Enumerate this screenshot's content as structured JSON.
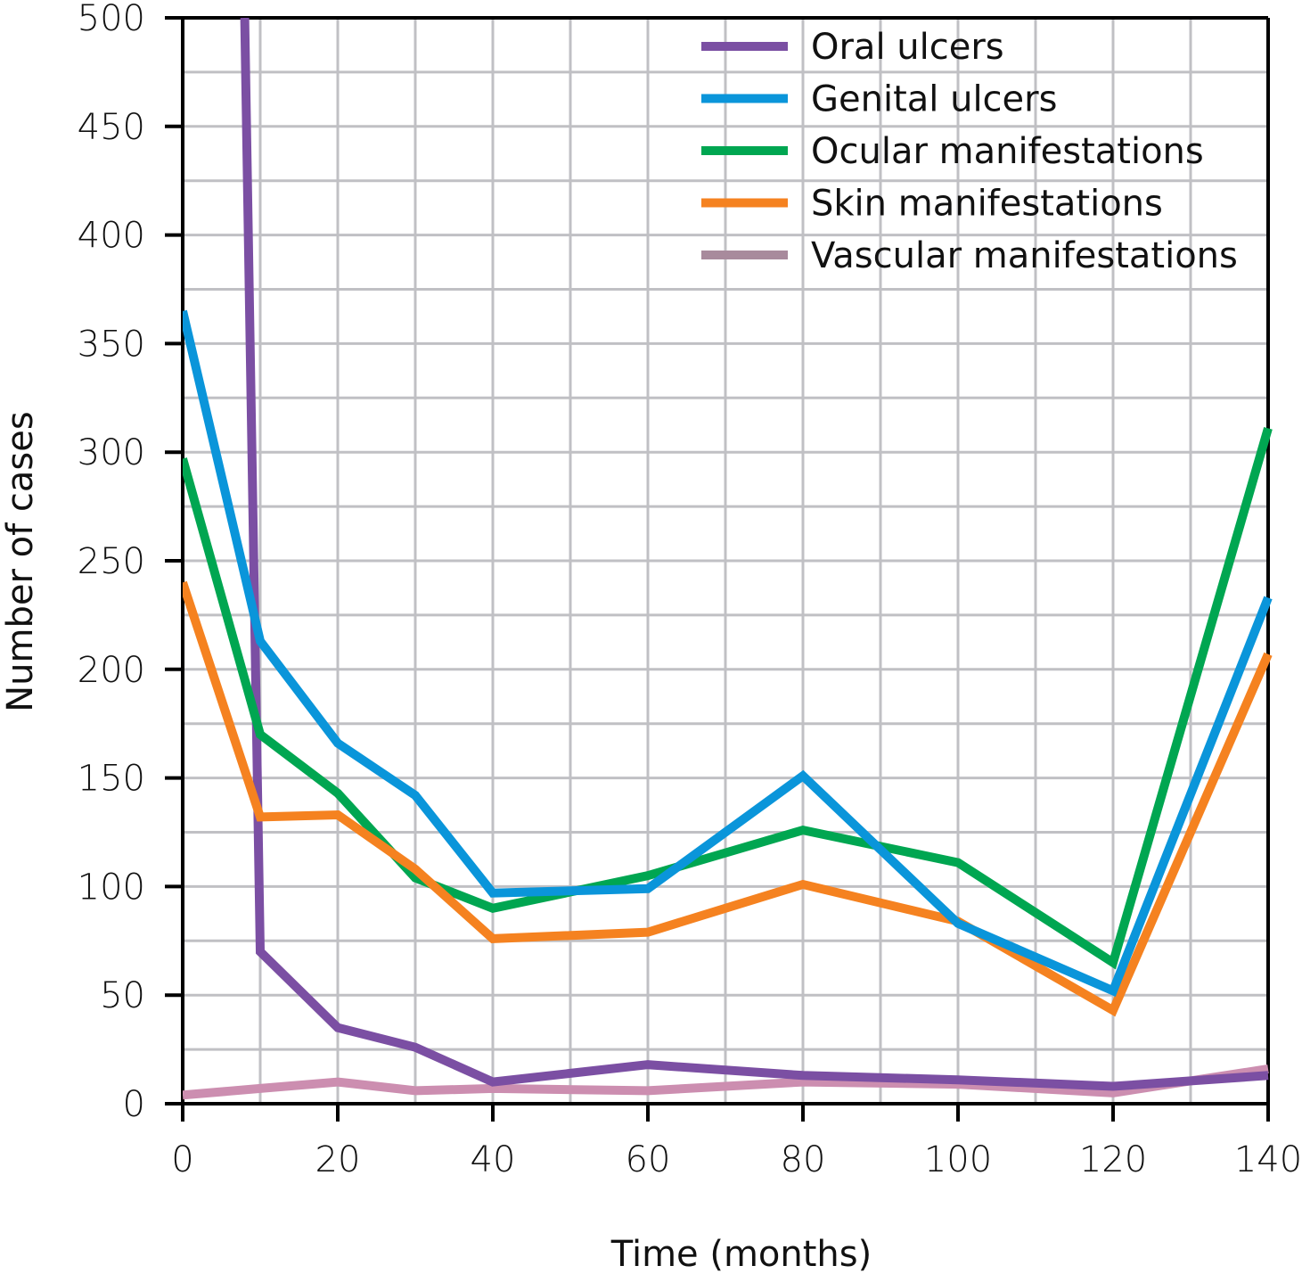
{
  "chart_data": {
    "type": "line",
    "title": "",
    "xlabel": "Time (months)",
    "ylabel": "Number of cases",
    "xlim": [
      0,
      140
    ],
    "ylim": [
      0,
      500
    ],
    "x_ticks": [
      0,
      20,
      40,
      60,
      80,
      100,
      120,
      140
    ],
    "y_ticks": [
      0,
      50,
      100,
      150,
      200,
      250,
      300,
      350,
      400,
      450,
      500
    ],
    "grid": true,
    "legend_position": "top-right",
    "series": [
      {
        "name": "Oral ulcers",
        "color": "#7B4FA3",
        "x": [
          8,
          10,
          20,
          30,
          40,
          60,
          80,
          100,
          120,
          140
        ],
        "y": [
          500,
          70,
          35,
          26,
          10,
          18,
          13,
          11,
          8,
          13
        ]
      },
      {
        "name": "Genital ulcers",
        "color": "#0A95DA",
        "x": [
          0,
          10,
          20,
          30,
          40,
          60,
          80,
          100,
          120,
          140
        ],
        "y": [
          365,
          213,
          166,
          142,
          97,
          99,
          151,
          83,
          52,
          233
        ]
      },
      {
        "name": "Ocular manifestations",
        "color": "#00A651",
        "x": [
          0,
          10,
          20,
          30,
          40,
          60,
          80,
          100,
          120,
          140
        ],
        "y": [
          297,
          170,
          143,
          104,
          90,
          105,
          126,
          111,
          65,
          311
        ]
      },
      {
        "name": "Skin manifestations",
        "color": "#F58220",
        "x": [
          0,
          10,
          20,
          30,
          40,
          60,
          80,
          100,
          120,
          140
        ],
        "y": [
          240,
          132,
          133,
          108,
          76,
          79,
          101,
          84,
          43,
          207
        ]
      },
      {
        "name": "Vascular manifestations",
        "color": "#CC8EB0",
        "legend_color": "#A88A9C",
        "x": [
          0,
          10,
          20,
          30,
          40,
          60,
          80,
          100,
          120,
          140
        ],
        "y": [
          4,
          7,
          10,
          6,
          7,
          6,
          10,
          9,
          5,
          16
        ]
      }
    ]
  }
}
